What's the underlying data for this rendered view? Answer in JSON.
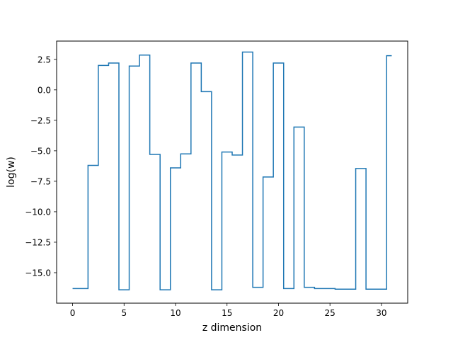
{
  "chart_data": {
    "type": "line",
    "drawstyle": "steps-mid",
    "title": "",
    "xlabel": "z dimension",
    "ylabel": "log(w)",
    "xlim": [
      -1.55,
      32.55
    ],
    "ylim": [
      -17.5,
      4.0
    ],
    "xticks": [
      0,
      5,
      10,
      15,
      20,
      25,
      30
    ],
    "xtick_labels": [
      "0",
      "5",
      "10",
      "15",
      "20",
      "25",
      "30"
    ],
    "yticks": [
      2.5,
      0.0,
      -2.5,
      -5.0,
      -7.5,
      -10.0,
      -12.5,
      -15.0
    ],
    "ytick_labels": [
      "2.5",
      "0.0",
      "−2.5",
      "−5.0",
      "−7.5",
      "−10.0",
      "−12.5",
      "−15.0"
    ],
    "grid": false,
    "legend": "none",
    "line_color": "#1f77b4",
    "x": [
      0,
      1,
      2,
      3,
      4,
      5,
      6,
      7,
      8,
      9,
      10,
      11,
      12,
      13,
      14,
      15,
      16,
      17,
      18,
      19,
      20,
      21,
      22,
      23,
      24,
      25,
      26,
      27,
      28,
      29,
      30,
      31
    ],
    "series": [
      {
        "values": [
          -16.3,
          -16.3,
          -6.2,
          2.0,
          2.2,
          -16.4,
          1.95,
          2.85,
          -5.3,
          -16.4,
          -6.4,
          -5.25,
          2.2,
          -0.15,
          -16.4,
          -5.1,
          -5.35,
          3.1,
          -16.2,
          -7.15,
          2.2,
          -16.3,
          -3.05,
          -16.2,
          -16.3,
          -16.3,
          -16.35,
          -16.35,
          -6.45,
          -16.35,
          -16.35,
          2.8
        ]
      }
    ]
  }
}
